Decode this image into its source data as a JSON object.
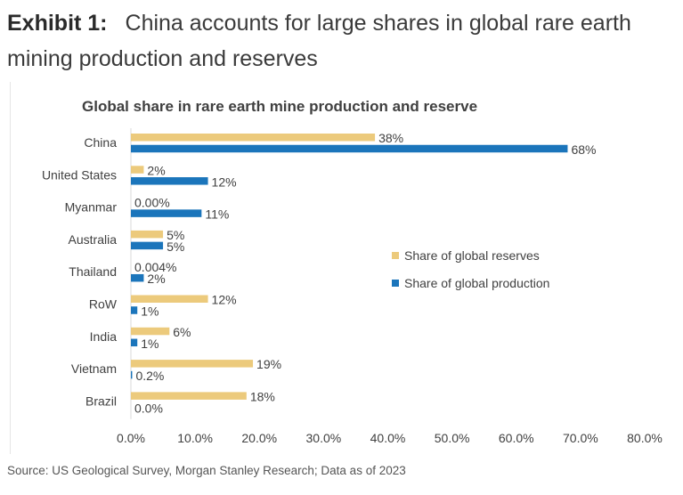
{
  "header": {
    "label": "Exhibit 1:",
    "title": "China accounts for large shares in global rare earth mining production and reserves"
  },
  "footer": {
    "source": "Source: US Geological Survey, Morgan Stanley Research; Data as of 2023"
  },
  "chart_data": {
    "type": "bar",
    "orientation": "horizontal",
    "title": "Global share in rare earth mine production and reserve",
    "categories": [
      "China",
      "United States",
      "Myanmar",
      "Australia",
      "Thailand",
      "RoW",
      "India",
      "Vietnam",
      "Brazil"
    ],
    "series": [
      {
        "name": "Share of global reserves",
        "color": "#ecca7c",
        "values": [
          38,
          2,
          0,
          5,
          0.004,
          12,
          6,
          19,
          18
        ],
        "labels": [
          "38%",
          "2%",
          "0.00%",
          "5%",
          "0.004%",
          "12%",
          "6%",
          "19%",
          "18%"
        ]
      },
      {
        "name": "Share of global production",
        "color": "#1b75bb",
        "values": [
          68,
          12,
          11,
          5,
          2,
          1,
          1,
          0.2,
          0
        ],
        "labels": [
          "68%",
          "12%",
          "11%",
          "5%",
          "2%",
          "1%",
          "1%",
          "0.2%",
          "0.0%"
        ]
      }
    ],
    "xlim": [
      0,
      80
    ],
    "xticks": [
      "0.0%",
      "10.0%",
      "20.0%",
      "30.0%",
      "40.0%",
      "50.0%",
      "60.0%",
      "70.0%",
      "80.0%"
    ],
    "grid": false,
    "legend_position": "right"
  }
}
